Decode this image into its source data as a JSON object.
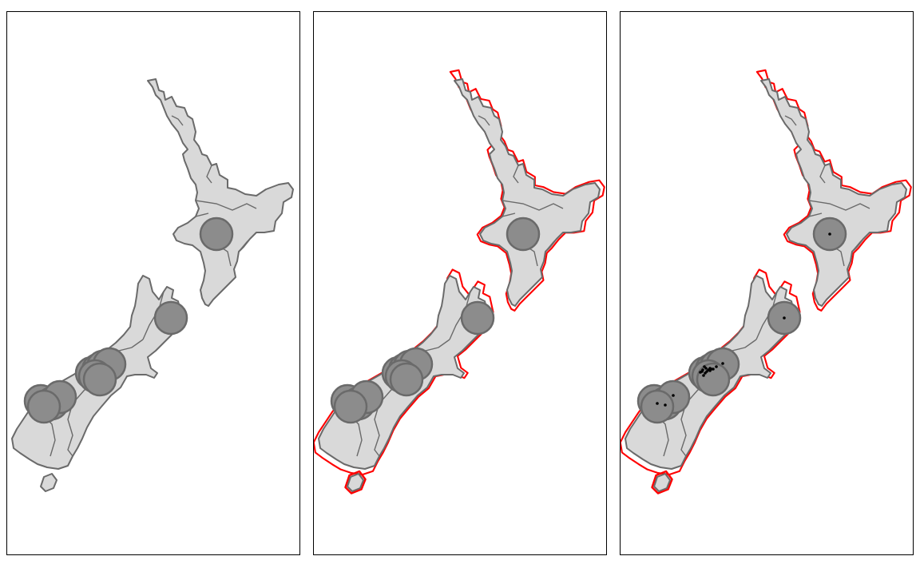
{
  "panels": [
    {
      "id": "panel-1",
      "show_buffer": false,
      "show_points": false
    },
    {
      "id": "panel-2",
      "show_buffer": true,
      "show_points": false
    },
    {
      "id": "panel-3",
      "show_buffer": true,
      "show_points": true
    }
  ],
  "colors": {
    "land": "#d9d9d9",
    "land_outline": "#6a6a6a",
    "circle_fill": "#8c8c8c",
    "buffer_line": "#ff0000",
    "points": "#000000",
    "frame": "#000000"
  },
  "circle_count": 12,
  "point_count": 20
}
